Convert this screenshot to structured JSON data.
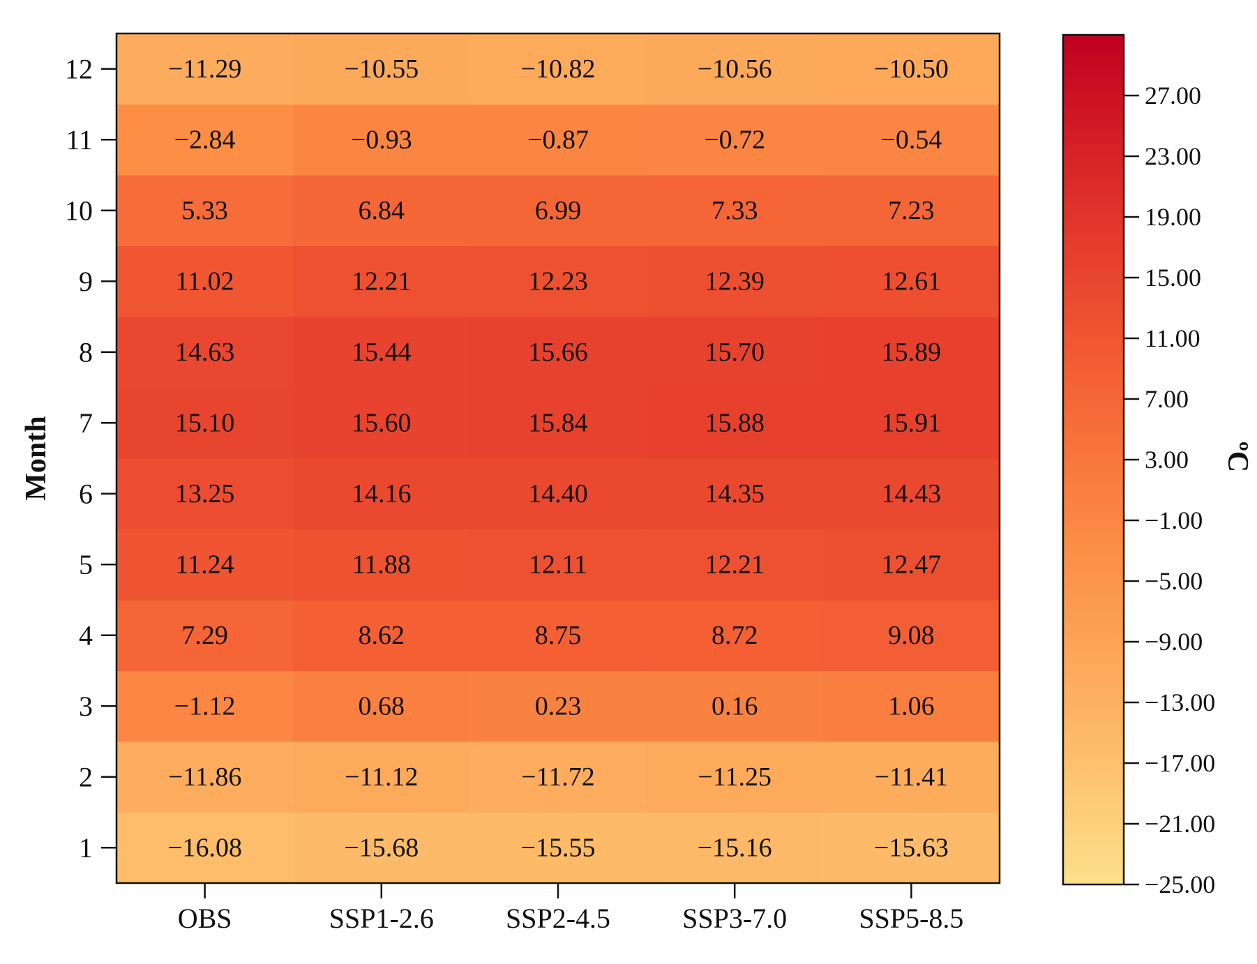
{
  "chart_data": {
    "type": "heatmap",
    "title": "",
    "xlabel": "",
    "ylabel": "Month",
    "colorbar_label": "ºC",
    "colorbar_range": [
      -25,
      31
    ],
    "colorbar_ticks": [
      "−25.00",
      "−21.00",
      "−17.00",
      "−13.00",
      "−9.00",
      "−5.00",
      "−1.00",
      "3.00",
      "7.00",
      "11.00",
      "15.00",
      "19.00",
      "23.00",
      "27.00"
    ],
    "colorbar_tick_values": [
      -25,
      -21,
      -17,
      -13,
      -9,
      -5,
      -1,
      3,
      7,
      11,
      15,
      19,
      23,
      27
    ],
    "colormap": [
      "#fde08b",
      "#fdb462",
      "#fc8d45",
      "#f46034",
      "#e0312a",
      "#c1001f"
    ],
    "x_categories": [
      "OBS",
      "SSP1-2.6",
      "SSP2-4.5",
      "SSP3-7.0",
      "SSP5-8.5"
    ],
    "y_categories": [
      "1",
      "2",
      "3",
      "4",
      "5",
      "6",
      "7",
      "8",
      "9",
      "10",
      "11",
      "12"
    ],
    "values": [
      [
        -16.08,
        -15.68,
        -15.55,
        -15.16,
        -15.63
      ],
      [
        -11.86,
        -11.12,
        -11.72,
        -11.25,
        -11.41
      ],
      [
        -1.12,
        0.68,
        0.23,
        0.16,
        1.06
      ],
      [
        7.29,
        8.62,
        8.75,
        8.72,
        9.08
      ],
      [
        11.24,
        11.88,
        12.11,
        12.21,
        12.47
      ],
      [
        13.25,
        14.16,
        14.4,
        14.35,
        14.43
      ],
      [
        15.1,
        15.6,
        15.84,
        15.88,
        15.91
      ],
      [
        14.63,
        15.44,
        15.66,
        15.7,
        15.89
      ],
      [
        11.02,
        12.21,
        12.23,
        12.39,
        12.61
      ],
      [
        5.33,
        6.84,
        6.99,
        7.33,
        7.23
      ],
      [
        -2.84,
        -0.93,
        -0.87,
        -0.72,
        -0.54
      ],
      [
        -11.29,
        -10.55,
        -10.82,
        -10.56,
        -10.5
      ]
    ],
    "value_labels": [
      [
        "−16.08",
        "−15.68",
        "−15.55",
        "−15.16",
        "−15.63"
      ],
      [
        "−11.86",
        "−11.12",
        "−11.72",
        "−11.25",
        "−11.41"
      ],
      [
        "−1.12",
        "0.68",
        "0.23",
        "0.16",
        "1.06"
      ],
      [
        "7.29",
        "8.62",
        "8.75",
        "8.72",
        "9.08"
      ],
      [
        "11.24",
        "11.88",
        "12.11",
        "12.21",
        "12.47"
      ],
      [
        "13.25",
        "14.16",
        "14.40",
        "14.35",
        "14.43"
      ],
      [
        "15.10",
        "15.60",
        "15.84",
        "15.88",
        "15.91"
      ],
      [
        "14.63",
        "15.44",
        "15.66",
        "15.70",
        "15.89"
      ],
      [
        "11.02",
        "12.21",
        "12.23",
        "12.39",
        "12.61"
      ],
      [
        "5.33",
        "6.84",
        "6.99",
        "7.33",
        "7.23"
      ],
      [
        "−2.84",
        "−0.93",
        "−0.87",
        "−0.72",
        "−0.54"
      ],
      [
        "−11.29",
        "−10.55",
        "−10.82",
        "−10.56",
        "−10.50"
      ]
    ]
  }
}
